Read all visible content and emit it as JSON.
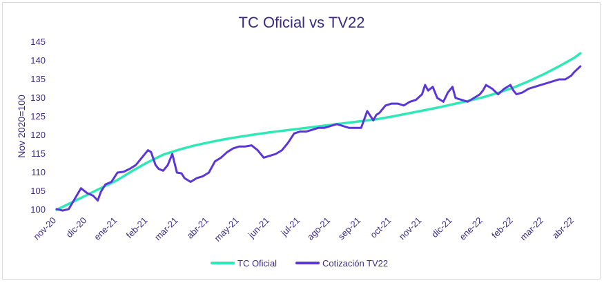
{
  "chart_data": {
    "type": "line",
    "title": "TC Oficial vs TV22",
    "xlabel": "",
    "ylabel": "Nov 2020=100",
    "ylim": [
      100,
      145
    ],
    "yticks": [
      100,
      105,
      110,
      115,
      120,
      125,
      130,
      135,
      140,
      145
    ],
    "categories": [
      "nov-20",
      "dic-20",
      "ene-21",
      "feb-21",
      "mar-21",
      "abr-21",
      "may-21",
      "jun-21",
      "jul-21",
      "ago-21",
      "sep-21",
      "oct-21",
      "nov-21",
      "dic-21",
      "ene-22",
      "feb-22",
      "mar-22",
      "abr-22"
    ],
    "grid": false,
    "legend": "bottom",
    "colors": {
      "tc_oficial": "#2ee8b6",
      "tv22": "#5a35d8",
      "text": "#3b2a85"
    },
    "series": [
      {
        "name": "TC Oficial",
        "x": [
          0,
          0.5,
          1,
          1.5,
          2,
          2.5,
          3,
          3.5,
          4,
          4.5,
          5,
          5.5,
          6,
          6.5,
          7,
          7.5,
          8,
          8.5,
          9,
          9.5,
          10,
          10.5,
          11,
          11.5,
          12,
          12.5,
          13,
          13.5,
          14,
          14.5,
          15,
          15.5,
          16,
          16.5,
          17,
          17.2
        ],
        "values": [
          100,
          102,
          104,
          106,
          108,
          110.5,
          112.8,
          114.8,
          116.1,
          117.2,
          118.1,
          118.9,
          119.6,
          120.2,
          120.8,
          121.3,
          121.8,
          122.3,
          122.8,
          123.3,
          123.8,
          124.3,
          125.0,
          125.8,
          126.6,
          127.4,
          128.3,
          129.2,
          130.2,
          131.4,
          132.8,
          134.5,
          136.4,
          138.5,
          140.8,
          142.0
        ]
      },
      {
        "name": "Cotización TV22",
        "x": [
          0,
          0.2,
          0.4,
          0.6,
          0.8,
          1.0,
          1.2,
          1.35,
          1.45,
          1.6,
          1.8,
          2.0,
          2.2,
          2.4,
          2.6,
          2.8,
          3.0,
          3.1,
          3.25,
          3.35,
          3.5,
          3.65,
          3.8,
          3.95,
          4.1,
          4.2,
          4.4,
          4.6,
          4.8,
          5.0,
          5.2,
          5.4,
          5.6,
          5.8,
          6.0,
          6.2,
          6.4,
          6.6,
          6.8,
          7.0,
          7.2,
          7.4,
          7.6,
          7.8,
          8.0,
          8.2,
          8.4,
          8.6,
          8.8,
          9.0,
          9.2,
          9.4,
          9.6,
          9.8,
          10.0,
          10.2,
          10.4,
          10.5,
          10.6,
          10.8,
          11.0,
          11.2,
          11.4,
          11.6,
          11.8,
          12.0,
          12.1,
          12.2,
          12.35,
          12.5,
          12.7,
          12.85,
          13.0,
          13.1,
          13.3,
          13.5,
          13.7,
          13.9,
          14.0,
          14.1,
          14.3,
          14.5,
          14.7,
          14.9,
          15.0,
          15.1,
          15.3,
          15.5,
          15.7,
          15.9,
          16.1,
          16.3,
          16.5,
          16.7,
          16.9,
          17.0,
          17.2
        ],
        "values": [
          100.2,
          99.8,
          100.2,
          103,
          105.8,
          104.5,
          103.8,
          102.5,
          104.8,
          106.8,
          107.5,
          110,
          110.2,
          111,
          112,
          114,
          116,
          115.5,
          112,
          111,
          110.5,
          112,
          115,
          110,
          109.8,
          108.5,
          107.5,
          108.5,
          109,
          110,
          113,
          114,
          115.5,
          116.5,
          117,
          117,
          117.3,
          116,
          114,
          114.5,
          115,
          116,
          118,
          120.5,
          121,
          121,
          121.5,
          122,
          122,
          122.5,
          123,
          122.5,
          122,
          122,
          122,
          126.5,
          124,
          125.5,
          126,
          128,
          128.5,
          128.5,
          128,
          129,
          129.5,
          131,
          133.5,
          132,
          133,
          130,
          129,
          131.5,
          133,
          130,
          129.5,
          129,
          130,
          131,
          132,
          133.5,
          132.5,
          131,
          132.5,
          133.5,
          132,
          131,
          131.5,
          132.5,
          133,
          133.5,
          134,
          134.5,
          135,
          135,
          136,
          137,
          138.5
        ]
      }
    ]
  }
}
